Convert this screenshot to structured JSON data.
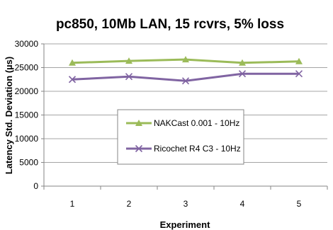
{
  "chart_data": {
    "type": "line",
    "title": "pc850, 10Mb LAN, 15 rcvrs, 5% loss",
    "xlabel": "Experiment",
    "ylabel": "Latency Std. Deviation (µs)",
    "categories": [
      "1",
      "2",
      "3",
      "4",
      "5"
    ],
    "ylim": [
      0,
      30000
    ],
    "yticks": [
      0,
      5000,
      10000,
      15000,
      20000,
      25000,
      30000
    ],
    "grid": "horizontal",
    "legend_position": "center",
    "series": [
      {
        "name": "NAKCast 0.001 - 10Hz",
        "values": [
          26000,
          26400,
          26700,
          26000,
          26300
        ],
        "color": "#9bbb59",
        "marker": "triangle"
      },
      {
        "name": "Ricochet R4 C3 - 10Hz",
        "values": [
          22500,
          23100,
          22200,
          23700,
          23700
        ],
        "color": "#8064a2",
        "marker": "x"
      }
    ]
  }
}
